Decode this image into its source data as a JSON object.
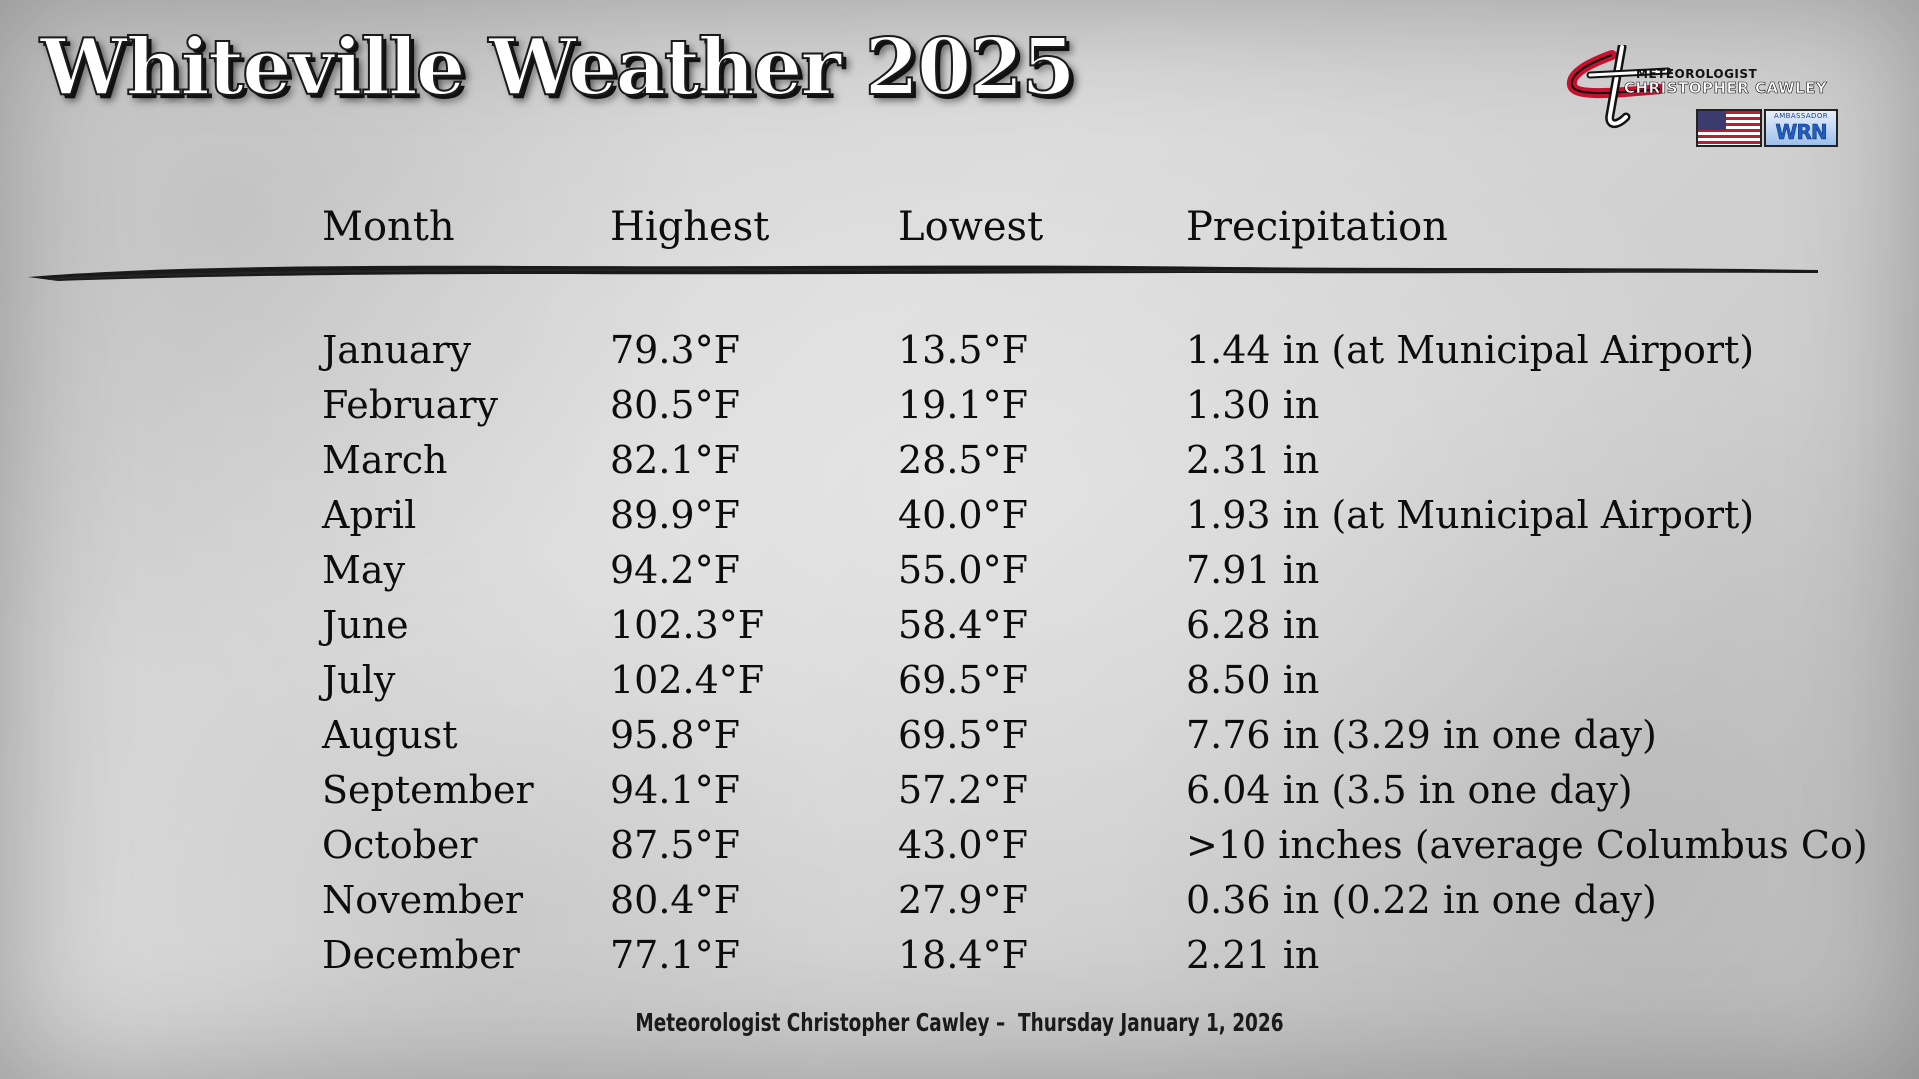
{
  "title": "Whiteville Weather 2025",
  "logo": {
    "line1": "METEOROLOGIST",
    "line2": "CHRISTOPHER CAWLEY",
    "ambassador": "AMBASSADOR",
    "wrn": "WRN",
    "icons": [
      "ct-monogram-logo",
      "us-flag-icon",
      "wrn-ambassador-badge"
    ]
  },
  "table": {
    "headers": {
      "month": "Month",
      "highest": "Highest",
      "lowest": "Lowest",
      "precipitation": "Precipitation"
    },
    "rows": [
      {
        "month": "January",
        "highest": "79.3°F",
        "lowest": "13.5°F",
        "precipitation": "1.44 in (at Municipal Airport)"
      },
      {
        "month": "February",
        "highest": "80.5°F",
        "lowest": "19.1°F",
        "precipitation": "1.30 in"
      },
      {
        "month": "March",
        "highest": "82.1°F",
        "lowest": "28.5°F",
        "precipitation": "2.31 in"
      },
      {
        "month": "April",
        "highest": "89.9°F",
        "lowest": "40.0°F",
        "precipitation": "1.93 in (at Municipal Airport)"
      },
      {
        "month": "May",
        "highest": "94.2°F",
        "lowest": "55.0°F",
        "precipitation": "7.91 in"
      },
      {
        "month": "June",
        "highest": "102.3°F",
        "lowest": "58.4°F",
        "precipitation": "6.28 in"
      },
      {
        "month": "July",
        "highest": "102.4°F",
        "lowest": "69.5°F",
        "precipitation": "8.50 in"
      },
      {
        "month": "August",
        "highest": "95.8°F",
        "lowest": "69.5°F",
        "precipitation": "7.76 in (3.29 in one day)"
      },
      {
        "month": "September",
        "highest": "94.1°F",
        "lowest": "57.2°F",
        "precipitation": "6.04 in (3.5 in one day)"
      },
      {
        "month": "October",
        "highest": "87.5°F",
        "lowest": "43.0°F",
        "precipitation": ">10 inches (average Columbus Co)"
      },
      {
        "month": "November",
        "highest": "80.4°F",
        "lowest": "27.9°F",
        "precipitation": "0.36 in (0.22 in one day)"
      },
      {
        "month": "December",
        "highest": "77.1°F",
        "lowest": "18.4°F",
        "precipitation": "2.21 in"
      }
    ]
  },
  "footer": "Meteorologist Christopher Cawley –  Thursday January 1, 2026",
  "colors": {
    "background": "#cccccc",
    "text": "#111111",
    "title_fill": "#ffffff",
    "logo_red": "#c8102e"
  }
}
